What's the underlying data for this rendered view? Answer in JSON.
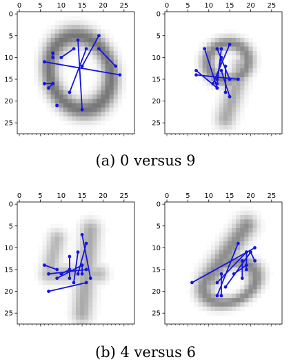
{
  "captions": [
    "(a) 0 versus 9",
    "(b) 4 versus 6"
  ],
  "chart_data": [
    {
      "type": "line",
      "title": "",
      "image": "digit-0-mean",
      "xlim": [
        -0.5,
        27.5
      ],
      "ylim": [
        27.5,
        -0.5
      ],
      "xticks": [
        0,
        5,
        10,
        15,
        20,
        25
      ],
      "yticks": [
        0,
        5,
        10,
        15,
        20,
        25
      ],
      "x_axis_position": "top",
      "segments": [
        [
          [
            6,
            11
          ],
          [
            24,
            14
          ]
        ],
        [
          [
            8,
            9
          ],
          [
            8,
            10
          ]
        ],
        [
          [
            6,
            16
          ],
          [
            8,
            16
          ]
        ],
        [
          [
            7,
            17
          ],
          [
            8,
            16
          ]
        ],
        [
          [
            10,
            10
          ],
          [
            13,
            8
          ]
        ],
        [
          [
            12,
            18
          ],
          [
            16,
            8
          ]
        ],
        [
          [
            14,
            6
          ],
          [
            15,
            22
          ]
        ],
        [
          [
            19,
            8
          ],
          [
            23,
            12
          ]
        ],
        [
          [
            19,
            5
          ],
          [
            15,
            12
          ]
        ],
        [
          [
            9,
            21
          ],
          [
            9,
            21
          ]
        ]
      ]
    },
    {
      "type": "line",
      "title": "",
      "image": "digit-9-mean",
      "xlim": [
        -0.5,
        27.5
      ],
      "ylim": [
        27.5,
        -0.5
      ],
      "xticks": [
        0,
        5,
        10,
        15,
        20,
        25
      ],
      "yticks": [
        0,
        5,
        10,
        15,
        20,
        25
      ],
      "x_axis_position": "top",
      "segments": [
        [
          [
            7,
            13
          ],
          [
            12,
            17
          ]
        ],
        [
          [
            7,
            14
          ],
          [
            17,
            15
          ]
        ],
        [
          [
            9,
            8
          ],
          [
            12,
            17
          ]
        ],
        [
          [
            11,
            16
          ],
          [
            15,
            7
          ]
        ],
        [
          [
            12,
            16
          ],
          [
            13,
            8
          ]
        ],
        [
          [
            13,
            13
          ],
          [
            15,
            19
          ]
        ],
        [
          [
            14,
            12
          ],
          [
            14,
            18
          ]
        ],
        [
          [
            12,
            8
          ],
          [
            15,
            15
          ]
        ],
        [
          [
            12,
            15
          ],
          [
            13,
            10
          ]
        ]
      ]
    },
    {
      "type": "line",
      "title": "",
      "image": "digit-4-mean",
      "xlim": [
        -0.5,
        27.5
      ],
      "ylim": [
        27.5,
        -0.5
      ],
      "xticks": [
        0,
        5,
        10,
        15,
        20,
        25
      ],
      "yticks": [
        0,
        5,
        10,
        15,
        20,
        25
      ],
      "x_axis_position": "top",
      "segments": [
        [
          [
            6,
            14
          ],
          [
            9,
            15
          ]
        ],
        [
          [
            7,
            16
          ],
          [
            16,
            15
          ]
        ],
        [
          [
            7,
            20
          ],
          [
            16,
            18
          ]
        ],
        [
          [
            9,
            17
          ],
          [
            15,
            14
          ]
        ],
        [
          [
            10,
            16
          ],
          [
            12,
            15
          ]
        ],
        [
          [
            12,
            17
          ],
          [
            12,
            12
          ]
        ],
        [
          [
            13,
            18
          ],
          [
            14,
            11
          ]
        ],
        [
          [
            15,
            7
          ],
          [
            17,
            17
          ]
        ],
        [
          [
            15,
            14
          ],
          [
            15,
            16
          ]
        ],
        [
          [
            16,
            9
          ],
          [
            14,
            16
          ]
        ]
      ]
    },
    {
      "type": "line",
      "title": "",
      "image": "digit-6-mean",
      "xlim": [
        -0.5,
        27.5
      ],
      "ylim": [
        27.5,
        -0.5
      ],
      "xticks": [
        0,
        5,
        10,
        15,
        20,
        25
      ],
      "yticks": [
        0,
        5,
        10,
        15,
        20,
        25
      ],
      "x_axis_position": "top",
      "segments": [
        [
          [
            6,
            18
          ],
          [
            21,
            10
          ]
        ],
        [
          [
            12,
            21
          ],
          [
            17,
            9
          ]
        ],
        [
          [
            13,
            21
          ],
          [
            13,
            16
          ]
        ],
        [
          [
            12,
            18
          ],
          [
            19,
            11
          ]
        ],
        [
          [
            14,
            19
          ],
          [
            20,
            11
          ]
        ],
        [
          [
            16,
            16
          ],
          [
            19,
            14
          ]
        ],
        [
          [
            18,
            17
          ],
          [
            18,
            13
          ]
        ],
        [
          [
            19,
            15
          ],
          [
            19,
            11
          ]
        ],
        [
          [
            21,
            13
          ],
          [
            20,
            11
          ]
        ]
      ]
    }
  ]
}
